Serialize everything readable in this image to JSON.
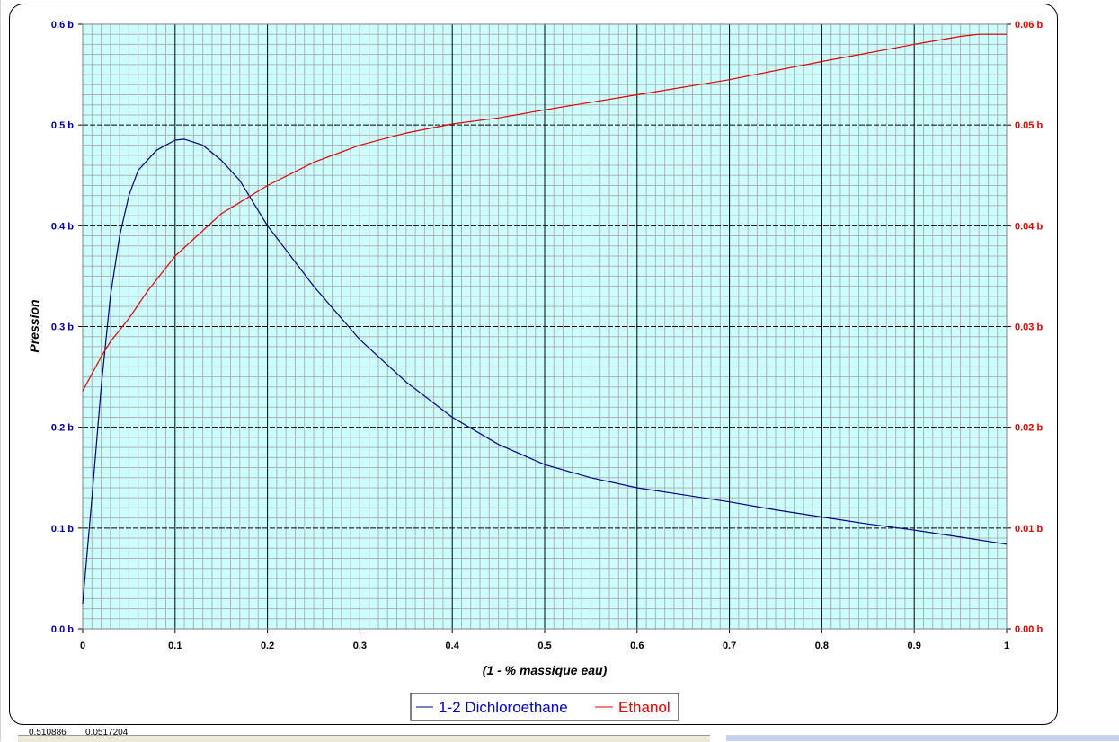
{
  "spreadsheet": {
    "cells": [
      "0.510886",
      "0.0517204"
    ]
  },
  "chart_data": {
    "type": "line",
    "xlabel": "(1 - % massique eau)",
    "ylabel": "Pression",
    "xlim": [
      0,
      1
    ],
    "ylim": [
      0,
      0.6
    ],
    "y2lim": [
      0,
      0.06
    ],
    "x_ticks": [
      "0",
      "0.1",
      "0.2",
      "0.3",
      "0.4",
      "0.5",
      "0.6",
      "0.7",
      "0.8",
      "0.9",
      "1"
    ],
    "y_ticks": [
      "0.0 b",
      "0.1 b",
      "0.2 b",
      "0.3 b",
      "0.4 b",
      "0.5 b",
      "0.6 b"
    ],
    "y2_ticks": [
      "0.00 b",
      "0.01 b",
      "0.02 b",
      "0.03 b",
      "0.04 b",
      "0.05 b",
      "0.06 b"
    ],
    "grid": true,
    "minor_grid": true,
    "legend_position": "bottom",
    "plot_background": "#ccffff",
    "series": [
      {
        "name": "1-2 Dichloroethane",
        "axis": "left",
        "color": "#000080",
        "x": [
          0,
          0.01,
          0.02,
          0.03,
          0.04,
          0.05,
          0.06,
          0.08,
          0.1,
          0.11,
          0.13,
          0.15,
          0.17,
          0.2,
          0.25,
          0.3,
          0.35,
          0.4,
          0.45,
          0.5,
          0.55,
          0.6,
          0.65,
          0.7,
          0.75,
          0.8,
          0.85,
          0.9,
          0.95,
          1.0
        ],
        "y": [
          0.025,
          0.13,
          0.24,
          0.33,
          0.39,
          0.43,
          0.455,
          0.475,
          0.485,
          0.486,
          0.48,
          0.465,
          0.445,
          0.4,
          0.34,
          0.287,
          0.245,
          0.21,
          0.183,
          0.163,
          0.15,
          0.14,
          0.133,
          0.126,
          0.118,
          0.111,
          0.104,
          0.098,
          0.091,
          0.084
        ]
      },
      {
        "name": "Ethanol",
        "axis": "right",
        "color": "#e00000",
        "x": [
          0,
          0.02,
          0.03,
          0.05,
          0.07,
          0.1,
          0.15,
          0.2,
          0.25,
          0.3,
          0.35,
          0.4,
          0.45,
          0.5,
          0.6,
          0.7,
          0.8,
          0.9,
          0.95,
          0.97,
          1.0
        ],
        "y": [
          0.0236,
          0.027,
          0.0285,
          0.0308,
          0.0335,
          0.037,
          0.0412,
          0.044,
          0.0463,
          0.048,
          0.0492,
          0.0501,
          0.0507,
          0.0515,
          0.053,
          0.0545,
          0.0563,
          0.058,
          0.0588,
          0.059,
          0.059
        ]
      }
    ]
  }
}
